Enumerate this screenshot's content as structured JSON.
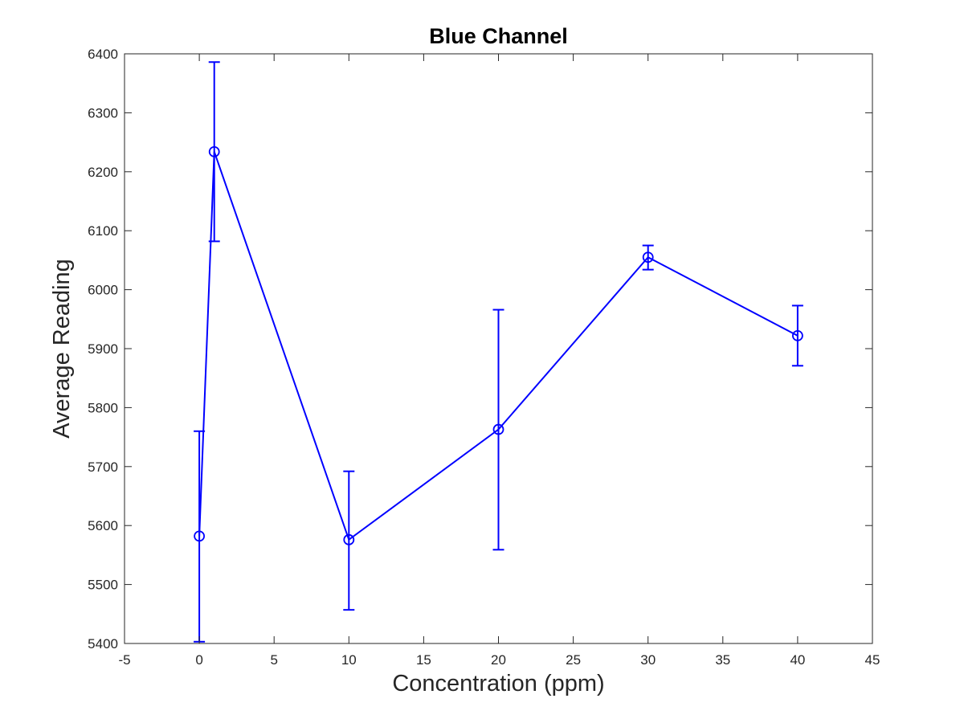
{
  "chart_data": {
    "type": "line",
    "title": "Blue Channel",
    "xlabel": "Concentration (ppm)",
    "ylabel": "Average Reading",
    "xlim": [
      -5,
      45
    ],
    "ylim": [
      5400,
      6400
    ],
    "x_ticks": [
      -5,
      0,
      5,
      10,
      15,
      20,
      25,
      30,
      35,
      40,
      45
    ],
    "y_ticks": [
      5400,
      5500,
      5600,
      5700,
      5800,
      5900,
      6000,
      6100,
      6200,
      6300,
      6400
    ],
    "grid": false,
    "legend": "none",
    "color": "#0000ff",
    "marker": "circle",
    "series": [
      {
        "x": [
          0,
          1,
          10,
          20,
          30,
          40
        ],
        "y": [
          5582,
          6234,
          5576,
          5763,
          6055,
          5922
        ],
        "error_lower": [
          5403,
          6082,
          5457,
          5559,
          6034,
          5871
        ],
        "error_upper": [
          5760,
          6386,
          5692,
          5966,
          6075,
          5973
        ]
      }
    ]
  }
}
